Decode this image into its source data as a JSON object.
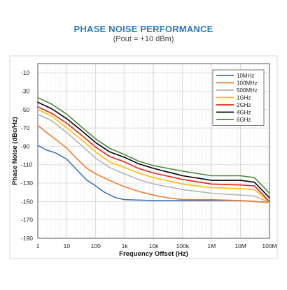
{
  "header": {
    "title": "PHASE NOISE PERFORMANCE",
    "subtitle": "(Pout = +10 dBm)"
  },
  "chart_data": {
    "type": "line",
    "x_scale": "log",
    "xlabel": "Frequency Offset (Hz)",
    "ylabel": "Phase Noise (dBc/Hz)",
    "xlim": [
      1,
      100000000
    ],
    "ylim": [
      -190,
      0
    ],
    "y_ticks": [
      -10,
      -30,
      -50,
      -70,
      -90,
      -110,
      -130,
      -150,
      -170,
      -190
    ],
    "x_ticks": [
      1,
      10,
      100,
      1000,
      10000,
      100000,
      1000000,
      10000000,
      100000000
    ],
    "x_tick_labels": [
      "1",
      "10",
      "100",
      "1k",
      "10k",
      "100k",
      "1M",
      "10M",
      "100M"
    ],
    "grid": true,
    "legend_position": "top-right",
    "series": [
      {
        "name": "10MHz",
        "color": "#4472c4",
        "x": [
          1,
          2,
          4,
          10,
          20,
          50,
          100,
          200,
          500,
          1000,
          10000,
          100000,
          1000000,
          10000000,
          100000000
        ],
        "y": [
          -89,
          -94,
          -97,
          -104,
          -114,
          -127,
          -133,
          -140,
          -146,
          -148,
          -149,
          -149,
          -149,
          -149,
          -151
        ]
      },
      {
        "name": "100MHz",
        "color": "#ed7d31",
        "x": [
          1,
          2,
          4,
          10,
          20,
          50,
          100,
          300,
          1000,
          3000,
          10000,
          30000,
          100000,
          1000000,
          10000000,
          100000000
        ],
        "y": [
          -67,
          -75,
          -82,
          -92,
          -102,
          -114,
          -120,
          -127,
          -134,
          -139,
          -143,
          -146,
          -148,
          -148,
          -149,
          -151
        ]
      },
      {
        "name": "500MHz",
        "color": "#b4b4b4",
        "x": [
          1,
          3,
          10,
          30,
          100,
          300,
          1000,
          3000,
          10000,
          100000,
          1000000,
          10000000,
          30000000,
          100000000
        ],
        "y": [
          -55,
          -62,
          -75,
          -88,
          -103,
          -113,
          -120,
          -126,
          -131,
          -137,
          -141,
          -143,
          -144,
          -151
        ]
      },
      {
        "name": "1GHz",
        "color": "#ffc000",
        "x": [
          1,
          3,
          10,
          30,
          100,
          300,
          1000,
          3000,
          10000,
          100000,
          1000000,
          10000000,
          30000000,
          100000000
        ],
        "y": [
          -50,
          -57,
          -70,
          -82,
          -96,
          -107,
          -113,
          -119,
          -124,
          -131,
          -135,
          -136,
          -137,
          -151
        ]
      },
      {
        "name": "2GHz",
        "color": "#e8201b",
        "x": [
          1,
          3,
          10,
          30,
          100,
          300,
          1000,
          3000,
          10000,
          100000,
          1000000,
          10000000,
          30000000,
          100000000
        ],
        "y": [
          -47,
          -54,
          -65,
          -77,
          -91,
          -101,
          -107,
          -114,
          -119,
          -126,
          -131,
          -132,
          -133,
          -150
        ]
      },
      {
        "name": "4GHz",
        "color": "#000000",
        "x": [
          1,
          3,
          10,
          30,
          100,
          300,
          1000,
          3000,
          10000,
          100000,
          1000000,
          10000000,
          30000000,
          100000000
        ],
        "y": [
          -42,
          -49,
          -60,
          -72,
          -86,
          -96,
          -102,
          -109,
          -114,
          -122,
          -127,
          -127,
          -129,
          -146
        ]
      },
      {
        "name": "6GHz",
        "color": "#4e8a3a",
        "x": [
          1,
          3,
          10,
          30,
          100,
          300,
          1000,
          3000,
          10000,
          100000,
          1000000,
          10000000,
          30000000,
          100000000
        ],
        "y": [
          -37,
          -44,
          -55,
          -68,
          -82,
          -92,
          -99,
          -106,
          -111,
          -117,
          -122,
          -122,
          -124,
          -141
        ]
      }
    ]
  }
}
